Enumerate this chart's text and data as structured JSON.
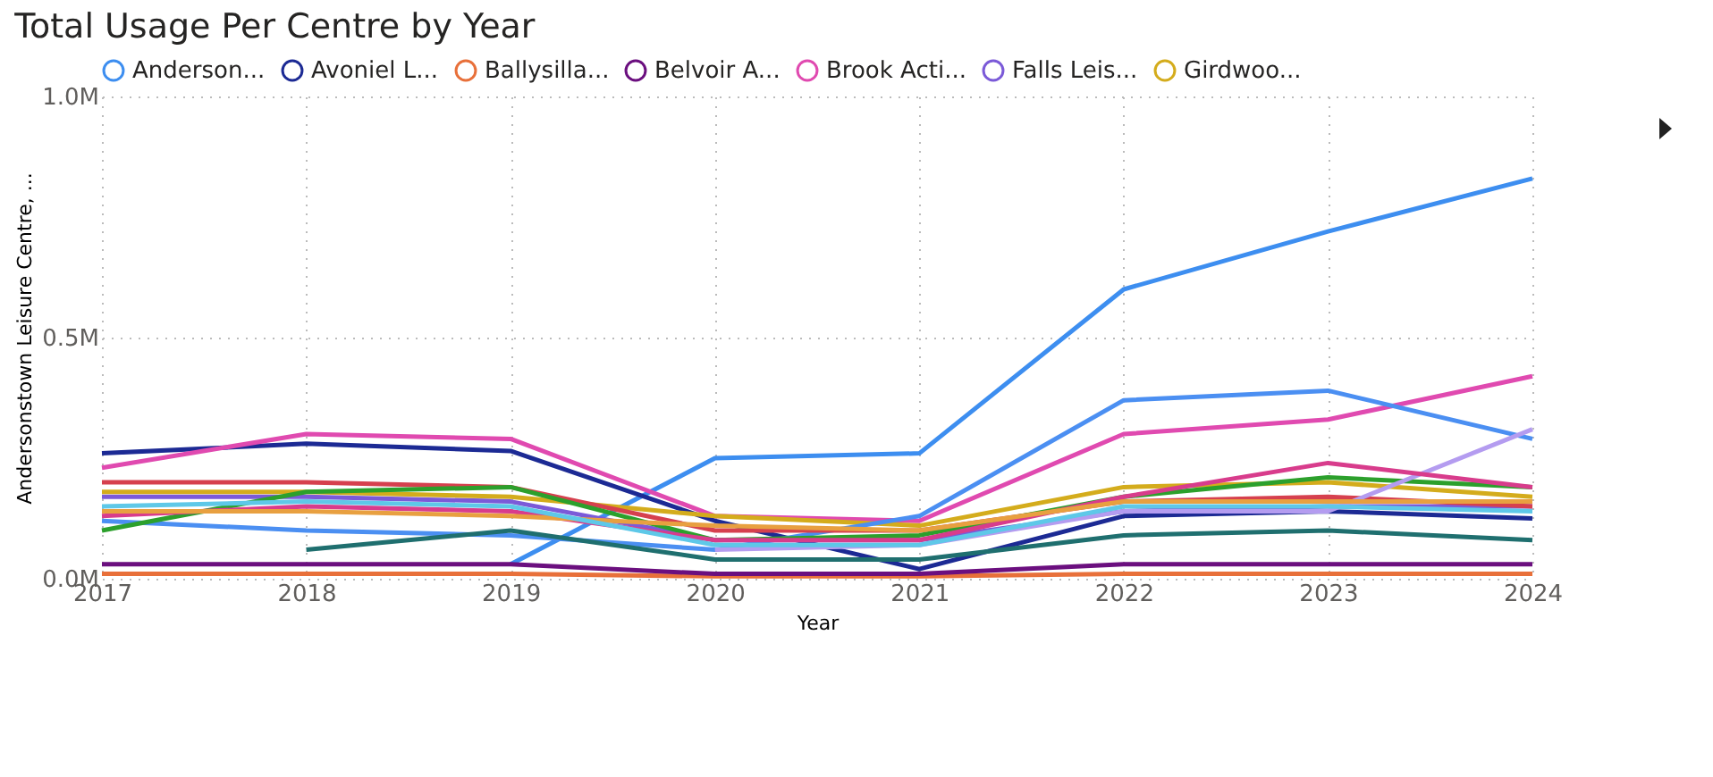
{
  "chart_data": {
    "type": "line",
    "title": "Total Usage Per Centre by Year",
    "xlabel": "Year",
    "ylabel": "Andersonstown Leisure Centre, ...",
    "x": [
      2017,
      2018,
      2019,
      2020,
      2021,
      2022,
      2023,
      2024
    ],
    "xlim": [
      2017,
      2024
    ],
    "xticks": [
      2017,
      2018,
      2019,
      2020,
      2021,
      2022,
      2023,
      2024
    ],
    "ylim": [
      0,
      1000000
    ],
    "yticks": [
      {
        "value": 0,
        "label": "0.0M"
      },
      {
        "value": 500000,
        "label": "0.5M"
      },
      {
        "value": 1000000,
        "label": "1.0M"
      }
    ],
    "grid": true,
    "legend": "top",
    "line_style": "solid",
    "series": [
      {
        "name": "Anderson...",
        "color": "#3d8ef0",
        "values": [
          null,
          null,
          30000,
          250000,
          260000,
          600000,
          720000,
          830000
        ]
      },
      {
        "name": "Avoniel L...",
        "color": "#1c2a94",
        "values": [
          260000,
          280000,
          265000,
          120000,
          20000,
          130000,
          140000,
          125000
        ]
      },
      {
        "name": "Ballysilla...",
        "color": "#e8703a",
        "values": [
          10000,
          10000,
          10000,
          5000,
          5000,
          10000,
          10000,
          10000
        ]
      },
      {
        "name": "Belvoir A...",
        "color": "#6b0f7f",
        "values": [
          30000,
          30000,
          30000,
          10000,
          10000,
          30000,
          30000,
          30000
        ]
      },
      {
        "name": "Brook Acti...",
        "color": "#e04ab0",
        "values": [
          230000,
          300000,
          290000,
          130000,
          120000,
          300000,
          330000,
          420000
        ]
      },
      {
        "name": "Falls Leis...",
        "color": "#7b5ad8",
        "values": [
          170000,
          170000,
          160000,
          80000,
          80000,
          140000,
          150000,
          150000
        ]
      },
      {
        "name": "Girdwoo...",
        "color": "#d4ac1c",
        "values": [
          180000,
          180000,
          170000,
          130000,
          110000,
          190000,
          200000,
          170000
        ]
      },
      {
        "color": "#4b8ff2",
        "values": [
          120000,
          100000,
          90000,
          60000,
          130000,
          370000,
          390000,
          290000
        ]
      },
      {
        "color": "#d6404e",
        "values": [
          200000,
          200000,
          190000,
          100000,
          100000,
          160000,
          170000,
          150000
        ]
      },
      {
        "color": "#2ca02c",
        "values": [
          100000,
          180000,
          190000,
          80000,
          90000,
          170000,
          210000,
          190000
        ]
      },
      {
        "color": "#1f6f6f",
        "values": [
          null,
          60000,
          100000,
          40000,
          40000,
          90000,
          100000,
          80000
        ]
      },
      {
        "color": "#b49cf0",
        "values": [
          null,
          null,
          null,
          60000,
          70000,
          140000,
          140000,
          310000
        ]
      },
      {
        "color": "#d83c8c",
        "values": [
          130000,
          150000,
          140000,
          80000,
          80000,
          170000,
          240000,
          190000
        ]
      },
      {
        "color": "#e8a040",
        "values": [
          140000,
          140000,
          130000,
          110000,
          100000,
          160000,
          160000,
          160000
        ]
      },
      {
        "color": "#5ec8e8",
        "values": [
          150000,
          160000,
          150000,
          70000,
          70000,
          150000,
          150000,
          140000
        ]
      }
    ]
  }
}
